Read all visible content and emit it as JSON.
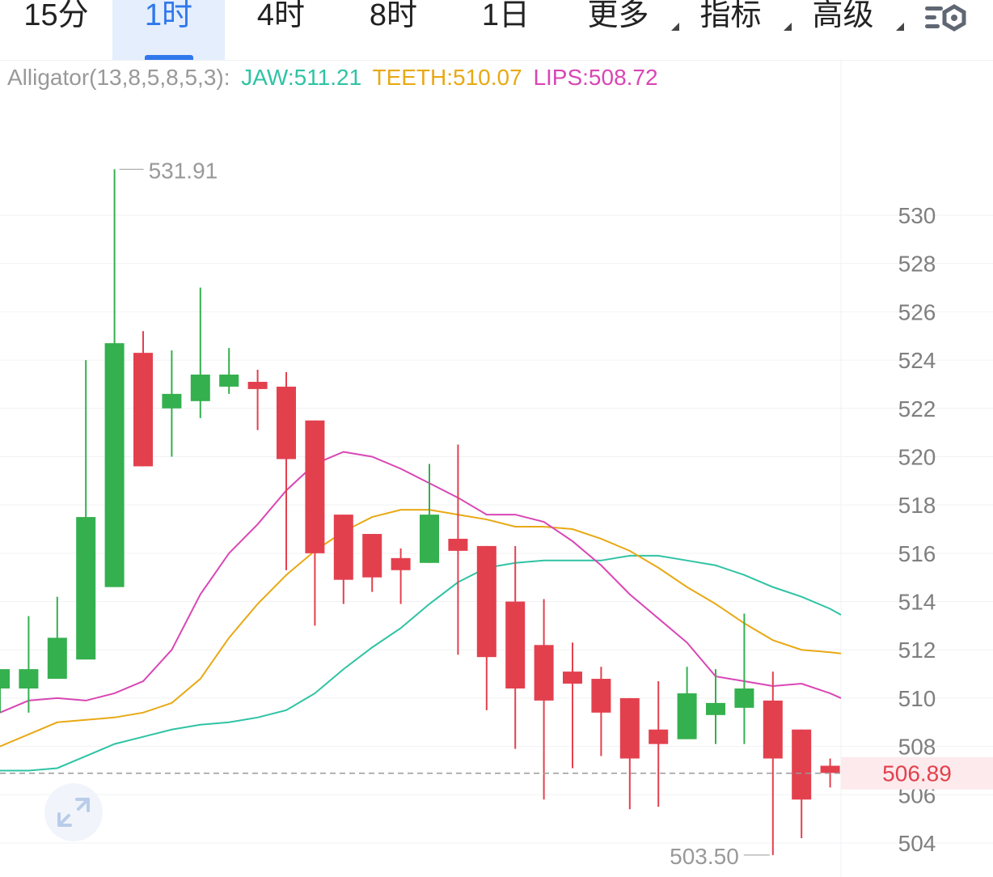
{
  "tabs": [
    {
      "label": "15分",
      "active": false,
      "dropdown": false
    },
    {
      "label": "1时",
      "active": true,
      "dropdown": false
    },
    {
      "label": "4时",
      "active": false,
      "dropdown": false
    },
    {
      "label": "8时",
      "active": false,
      "dropdown": false
    },
    {
      "label": "1日",
      "active": false,
      "dropdown": false
    },
    {
      "label": "更多",
      "active": false,
      "dropdown": true
    },
    {
      "label": "指标",
      "active": false,
      "dropdown": true
    },
    {
      "label": "高级",
      "active": false,
      "dropdown": true
    }
  ],
  "icons": {
    "settings": "chart-settings-icon",
    "expand": "expand-arrows-icon"
  },
  "indicator": {
    "name": "Alligator(13,8,5,8,5,3):",
    "jaw": "JAW:511.21",
    "teeth": "TEETH:510.07",
    "lips": "LIPS:508.72"
  },
  "colors": {
    "up": "#34b04e",
    "down": "#e3404e",
    "jaw": "#2fc3a4",
    "teeth": "#e8a914",
    "lips": "#d946b4",
    "active_tab": "#2f78ec",
    "last_price": "#e3404e",
    "axis_text": "#7f7f7f"
  },
  "chart_data": {
    "type": "candlestick",
    "ylim": [
      503,
      533
    ],
    "yticks": [
      "504",
      "506",
      "508",
      "510",
      "512",
      "514",
      "516",
      "518",
      "520",
      "522",
      "524",
      "526",
      "528",
      "530"
    ],
    "high_label": "531.91",
    "low_label": "503.50",
    "last_price_label": "506.89",
    "last_price": 506.89,
    "candles": [
      {
        "o": 510.4,
        "h": 511.2,
        "l": 509.4,
        "c": 511.2
      },
      {
        "o": 510.4,
        "h": 513.4,
        "l": 509.4,
        "c": 511.2
      },
      {
        "o": 510.8,
        "h": 514.2,
        "l": 510.8,
        "c": 512.5
      },
      {
        "o": 511.6,
        "h": 524.0,
        "l": 511.6,
        "c": 517.5
      },
      {
        "o": 514.6,
        "h": 531.9,
        "l": 514.6,
        "c": 524.7
      },
      {
        "o": 524.3,
        "h": 525.2,
        "l": 519.6,
        "c": 519.6
      },
      {
        "o": 522.0,
        "h": 524.4,
        "l": 520.0,
        "c": 522.6
      },
      {
        "o": 522.3,
        "h": 527.0,
        "l": 521.6,
        "c": 523.4
      },
      {
        "o": 522.9,
        "h": 524.5,
        "l": 522.6,
        "c": 523.4
      },
      {
        "o": 523.1,
        "h": 523.6,
        "l": 521.1,
        "c": 522.8
      },
      {
        "o": 522.9,
        "h": 523.5,
        "l": 515.3,
        "c": 519.9
      },
      {
        "o": 521.5,
        "h": 521.5,
        "l": 513.0,
        "c": 516.0
      },
      {
        "o": 517.6,
        "h": 517.6,
        "l": 513.9,
        "c": 514.9
      },
      {
        "o": 516.8,
        "h": 516.8,
        "l": 514.4,
        "c": 515.0
      },
      {
        "o": 515.8,
        "h": 516.2,
        "l": 513.9,
        "c": 515.3
      },
      {
        "o": 515.6,
        "h": 519.7,
        "l": 515.6,
        "c": 517.6
      },
      {
        "o": 516.6,
        "h": 520.5,
        "l": 511.8,
        "c": 516.1
      },
      {
        "o": 516.3,
        "h": 516.3,
        "l": 509.5,
        "c": 511.7
      },
      {
        "o": 514.0,
        "h": 516.3,
        "l": 507.9,
        "c": 510.4
      },
      {
        "o": 512.2,
        "h": 514.1,
        "l": 505.8,
        "c": 509.9
      },
      {
        "o": 511.1,
        "h": 512.3,
        "l": 507.1,
        "c": 510.6
      },
      {
        "o": 510.8,
        "h": 511.3,
        "l": 507.6,
        "c": 509.4
      },
      {
        "o": 510.0,
        "h": 510.0,
        "l": 505.4,
        "c": 507.5
      },
      {
        "o": 508.7,
        "h": 510.7,
        "l": 505.5,
        "c": 508.1
      },
      {
        "o": 508.3,
        "h": 511.3,
        "l": 508.3,
        "c": 510.2
      },
      {
        "o": 509.3,
        "h": 511.2,
        "l": 508.1,
        "c": 509.8
      },
      {
        "o": 509.6,
        "h": 513.5,
        "l": 508.1,
        "c": 510.4
      },
      {
        "o": 509.9,
        "h": 511.1,
        "l": 503.5,
        "c": 507.5
      },
      {
        "o": 508.7,
        "h": 508.7,
        "l": 504.2,
        "c": 505.8
      },
      {
        "o": 507.2,
        "h": 507.5,
        "l": 506.3,
        "c": 506.9
      }
    ],
    "series": [
      {
        "name": "JAW",
        "values": [
          507.0,
          507.0,
          507.1,
          507.6,
          508.1,
          508.4,
          508.7,
          508.9,
          509.0,
          509.2,
          509.5,
          510.2,
          511.2,
          512.1,
          512.9,
          513.9,
          514.8,
          515.4,
          515.6,
          515.7,
          515.7,
          515.7,
          515.9,
          515.9,
          515.7,
          515.5,
          515.1,
          514.6,
          514.2,
          513.7
        ]
      },
      {
        "name": "TEETH",
        "values": [
          508.0,
          508.5,
          509.0,
          509.1,
          509.2,
          509.4,
          509.8,
          510.8,
          512.5,
          513.9,
          515.1,
          516.1,
          516.9,
          517.5,
          517.8,
          517.8,
          517.6,
          517.4,
          517.1,
          517.1,
          517.0,
          516.6,
          516.1,
          515.4,
          514.6,
          513.9,
          513.1,
          512.4,
          512.0,
          511.9
        ]
      },
      {
        "name": "LIPS",
        "values": [
          509.4,
          509.9,
          510.0,
          509.9,
          510.2,
          510.7,
          512.0,
          514.3,
          516.0,
          517.2,
          518.6,
          519.7,
          520.2,
          520.0,
          519.5,
          518.9,
          518.3,
          517.6,
          517.6,
          517.3,
          516.5,
          515.5,
          514.3,
          513.3,
          512.3,
          510.9,
          510.7,
          510.5,
          510.6,
          510.2
        ]
      }
    ]
  }
}
